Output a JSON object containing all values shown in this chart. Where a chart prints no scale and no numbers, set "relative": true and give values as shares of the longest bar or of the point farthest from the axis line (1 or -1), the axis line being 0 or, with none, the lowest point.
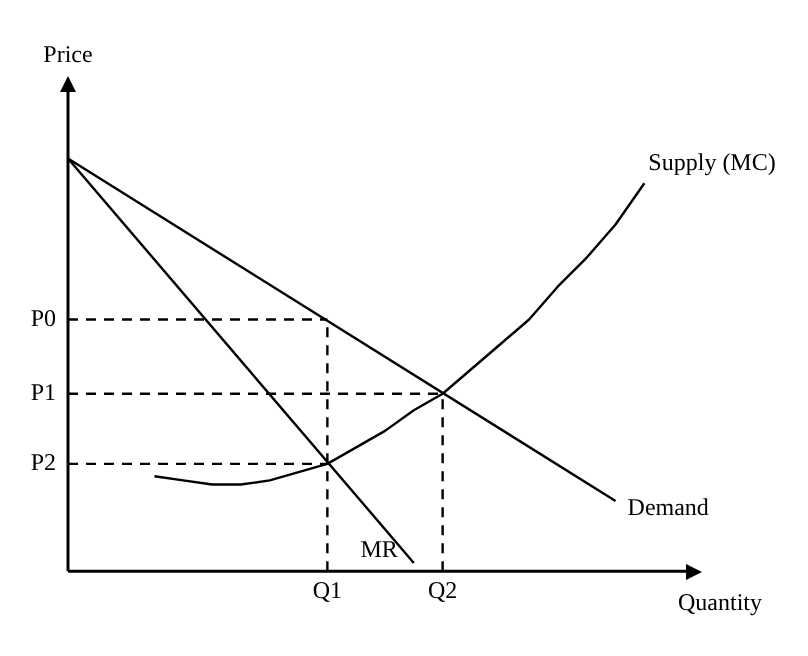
{
  "chart_data": {
    "type": "line",
    "xlabel": "Quantity",
    "ylabel": "Price",
    "relative": true,
    "categories": [
      null,
      null,
      null,
      null,
      null,
      null,
      null,
      null,
      null,
      "Q1",
      null,
      null,
      null,
      "Q2",
      null,
      null,
      null,
      null,
      null,
      null,
      null,
      null,
      null
    ],
    "grid": false,
    "legend": false,
    "marker": "none",
    "ref_lines": [
      {
        "axis": "x",
        "value": "Q1",
        "color": "#000000",
        "line_style": "dashed"
      },
      {
        "axis": "x",
        "value": "Q2",
        "color": "#000000",
        "line_style": "dashed"
      }
    ],
    "series": [
      {
        "name": "Supply (MC)",
        "color": "#000000",
        "line_style": "solid",
        "values": [
          null,
          null,
          null,
          0.23,
          0.22,
          0.21,
          0.21,
          0.22,
          0.24,
          0.26,
          0.3,
          0.34,
          0.39,
          0.43,
          0.49,
          0.55,
          0.61,
          0.69,
          0.76,
          0.84,
          0.94,
          null,
          null
        ]
      },
      {
        "name": "Demand",
        "color": "#000000",
        "line_style": "solid",
        "values": [
          1,
          null,
          null,
          null,
          null,
          null,
          null,
          null,
          null,
          null,
          null,
          null,
          null,
          null,
          null,
          null,
          null,
          null,
          null,
          0.17,
          null,
          null,
          null
        ]
      },
      {
        "name": "MR",
        "color": "#000000",
        "line_style": "solid",
        "values": [
          1,
          null,
          null,
          null,
          null,
          null,
          null,
          null,
          null,
          null,
          null,
          null,
          0.02,
          null,
          null,
          null,
          null,
          null,
          null,
          null,
          null,
          null,
          null
        ]
      },
      {
        "name": "P0",
        "color": "#000000",
        "line_style": "dashed",
        "values": [
          0.61,
          null,
          null,
          null,
          null,
          null,
          null,
          null,
          null,
          0.61,
          null,
          null,
          null,
          null,
          null,
          null,
          null,
          null,
          null,
          null,
          null,
          null,
          null
        ]
      },
      {
        "name": "P1",
        "color": "#000000",
        "line_style": "dashed",
        "values": [
          0.43,
          null,
          null,
          null,
          null,
          null,
          null,
          null,
          null,
          null,
          null,
          null,
          null,
          0.43,
          null,
          null,
          null,
          null,
          null,
          null,
          null,
          null,
          null
        ]
      },
      {
        "name": "P2",
        "color": "#000000",
        "line_style": "dashed",
        "values": [
          0.26,
          null,
          null,
          null,
          null,
          null,
          null,
          null,
          null,
          0.26,
          null,
          null,
          null,
          null,
          null,
          null,
          null,
          null,
          null,
          null,
          null,
          null,
          null
        ]
      }
    ]
  }
}
